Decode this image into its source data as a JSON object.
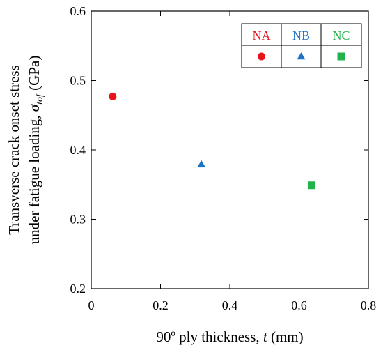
{
  "chart_data": {
    "type": "scatter",
    "xlabel": {
      "prefix": "90º ply thickness, ",
      "var": "t",
      "suffix": " (mm)"
    },
    "ylabel": {
      "line1": "Transverse crack onset stress",
      "line2_prefix": "under fatigue loading, ",
      "line2_var": "σ",
      "line2_sub": "tof",
      "line2_suffix": " (GPa)"
    },
    "xlim": [
      0,
      0.8
    ],
    "ylim": [
      0.2,
      0.6
    ],
    "x_ticks": [
      "0",
      "0.2",
      "0.4",
      "0.6",
      "0.8"
    ],
    "y_ticks": [
      "0.2",
      "0.3",
      "0.4",
      "0.5",
      "0.6"
    ],
    "x_tick_values": [
      0,
      0.2,
      0.4,
      0.6,
      0.8
    ],
    "y_tick_values": [
      0.2,
      0.3,
      0.4,
      0.5,
      0.6
    ],
    "legend_position": "top-right",
    "series": [
      {
        "name": "NA",
        "marker": "circle",
        "color": "#e8141c",
        "x": [
          0.062
        ],
        "y": [
          0.477
        ]
      },
      {
        "name": "NB",
        "marker": "triangle",
        "color": "#1f73c4",
        "x": [
          0.318
        ],
        "y": [
          0.379
        ]
      },
      {
        "name": "NC",
        "marker": "square",
        "color": "#22b24c",
        "x": [
          0.636
        ],
        "y": [
          0.349
        ]
      }
    ]
  }
}
